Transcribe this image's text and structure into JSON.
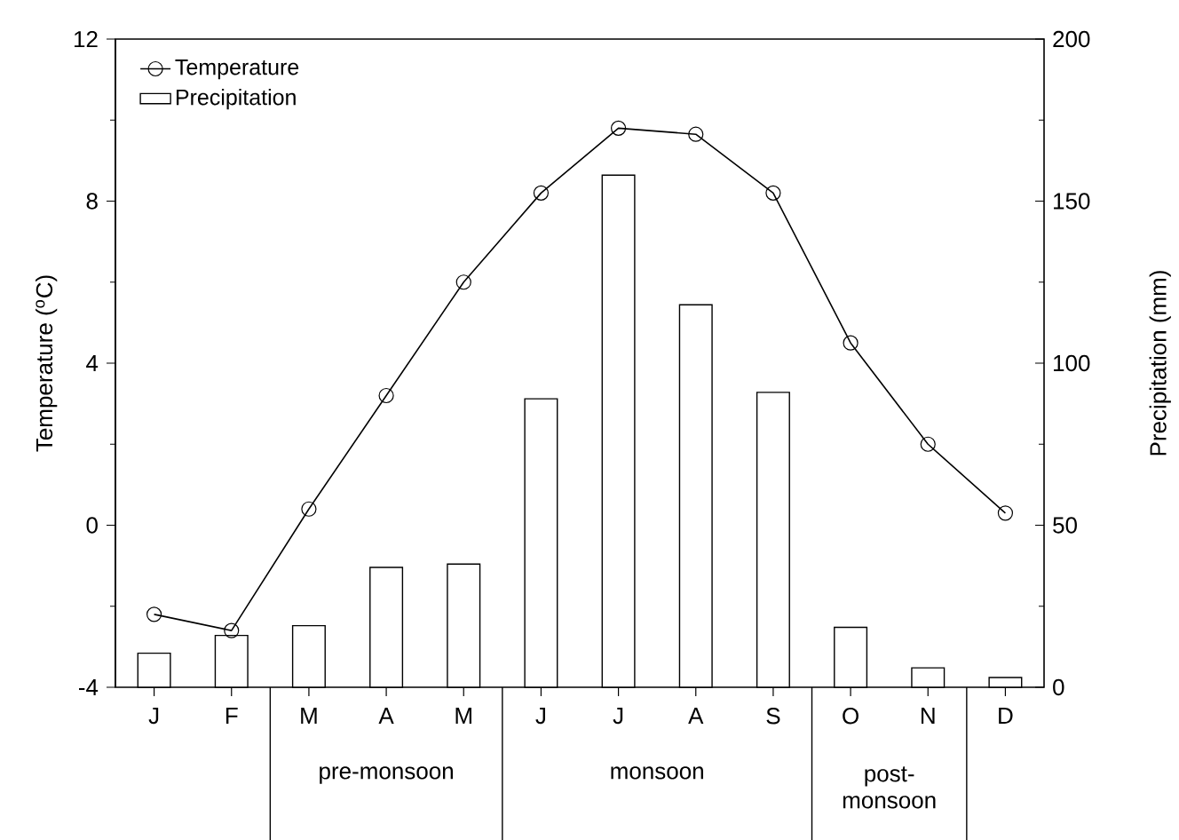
{
  "chart_data": {
    "type": "bar",
    "categories": [
      "J",
      "F",
      "M",
      "A",
      "M",
      "J",
      "J",
      "A",
      "S",
      "O",
      "N",
      "D"
    ],
    "series": [
      {
        "name": "Temperature",
        "type": "line",
        "color": "#000000",
        "values": [
          -2.2,
          -2.6,
          0.4,
          3.2,
          6.0,
          8.2,
          9.8,
          9.65,
          8.2,
          4.5,
          2.0,
          0.3
        ]
      },
      {
        "name": "Precipitation",
        "axis": "y2",
        "color": "#ffffff",
        "values": [
          10.5,
          16,
          19,
          37,
          38,
          89,
          158,
          118,
          91,
          18.5,
          6,
          3
        ]
      }
    ],
    "ylabel": "Temperature ($^{o}$C)",
    "y2label": "Precipitation (mm)",
    "ylim": [
      -4,
      12
    ],
    "yticks": [
      -4,
      0,
      4,
      8,
      12
    ],
    "y2lim": [
      0,
      200
    ],
    "y2ticks": [
      0,
      50,
      100,
      150,
      200
    ],
    "annotations": [
      "pre-monsoon",
      "monsoon",
      "post-monsoon"
    ],
    "legend": "top left",
    "marker": "circle",
    "line_style": "solid",
    "grid": false
  }
}
